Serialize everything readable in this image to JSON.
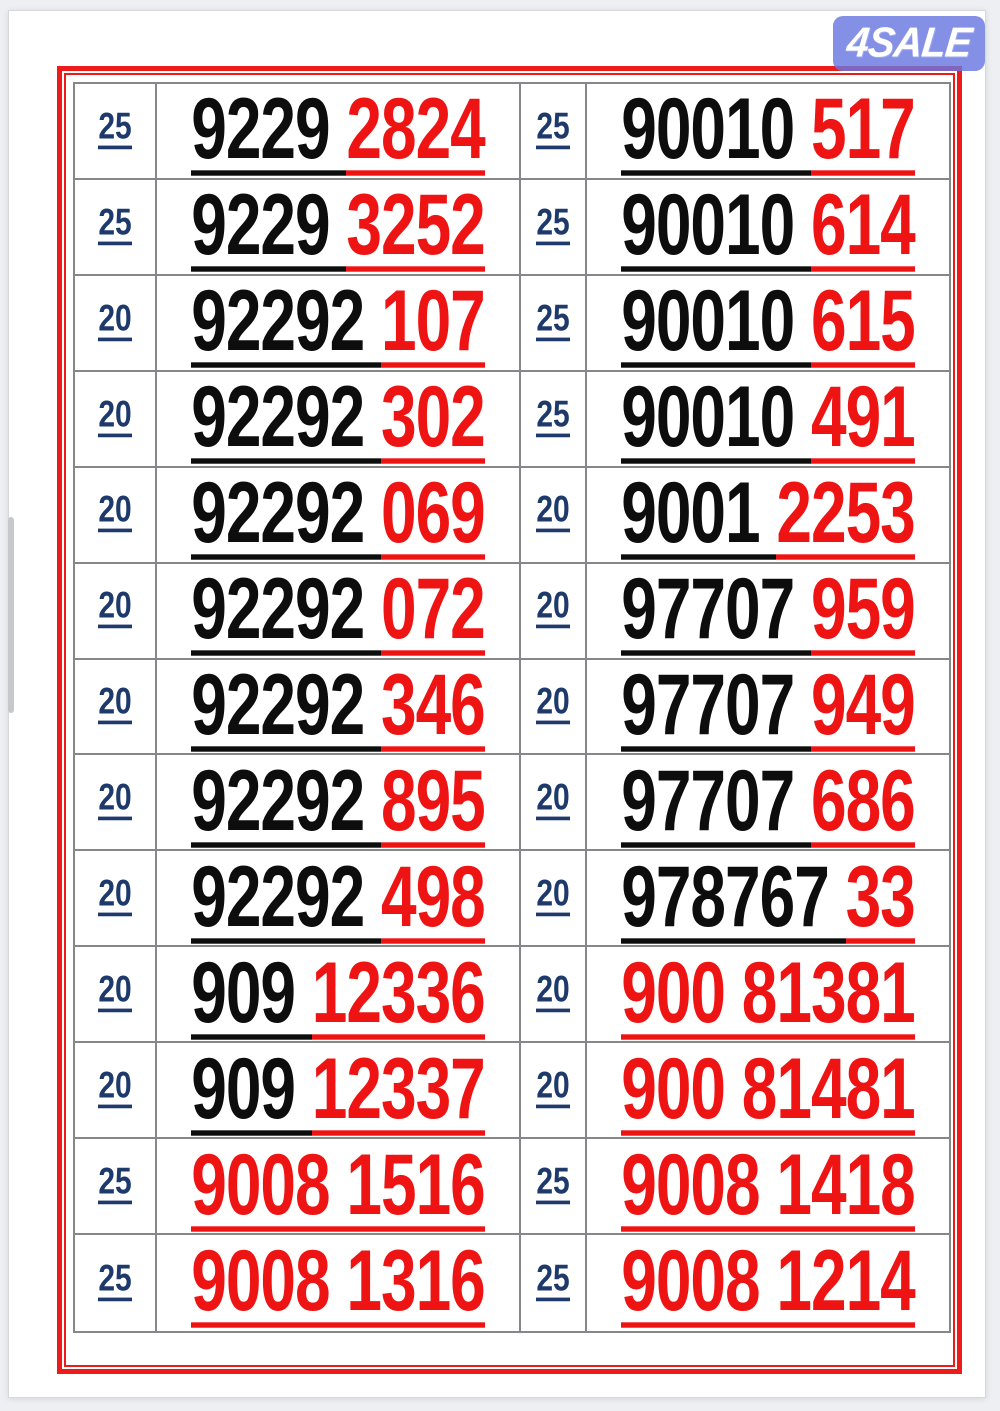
{
  "watermark": {
    "label": "4SALE"
  },
  "colors": {
    "accent_red": "#ee1414",
    "frame_red": "#ee1b1b",
    "price_navy": "#1e3a6c",
    "digit_black": "#0d0d0d",
    "cell_border_gray": "#85878b",
    "watermark_blue": "#6877e0",
    "page_background": "#ffffff",
    "canvas_background": "#edeff3"
  },
  "listings": {
    "left": [
      {
        "price": "25",
        "black": "9229 ",
        "red": "2824"
      },
      {
        "price": "25",
        "black": "9229 ",
        "red": "3252"
      },
      {
        "price": "20",
        "black": "92292 ",
        "red": "107"
      },
      {
        "price": "20",
        "black": "92292 ",
        "red": "302"
      },
      {
        "price": "20",
        "black": "92292 ",
        "red": "069"
      },
      {
        "price": "20",
        "black": "92292 ",
        "red": "072"
      },
      {
        "price": "20",
        "black": "92292 ",
        "red": "346"
      },
      {
        "price": "20",
        "black": "92292 ",
        "red": "895"
      },
      {
        "price": "20",
        "black": "92292 ",
        "red": "498"
      },
      {
        "price": "20",
        "black": "909 ",
        "red": "12336"
      },
      {
        "price": "20",
        "black": "909 ",
        "red": "12337"
      },
      {
        "price": "25",
        "black": "",
        "red": "9008 1516"
      },
      {
        "price": "25",
        "black": "",
        "red": "9008 1316"
      }
    ],
    "right": [
      {
        "price": "25",
        "black": "90010 ",
        "red": "517"
      },
      {
        "price": "25",
        "black": "90010 ",
        "red": "614"
      },
      {
        "price": "25",
        "black": "90010 ",
        "red": "615"
      },
      {
        "price": "25",
        "black": "90010 ",
        "red": "491"
      },
      {
        "price": "20",
        "black": "9001 ",
        "red": "2253"
      },
      {
        "price": "20",
        "black": "97707 ",
        "red": "959"
      },
      {
        "price": "20",
        "black": "97707 ",
        "red": "949"
      },
      {
        "price": "20",
        "black": "97707 ",
        "red": "686"
      },
      {
        "price": "20",
        "black": "978767 ",
        "red": "33"
      },
      {
        "price": "20",
        "black": "",
        "red": "900 81381"
      },
      {
        "price": "20",
        "black": "",
        "red": "900 81481"
      },
      {
        "price": "25",
        "black": "",
        "red": "9008 1418"
      },
      {
        "price": "25",
        "black": "",
        "red": "9008 1214"
      }
    ]
  }
}
